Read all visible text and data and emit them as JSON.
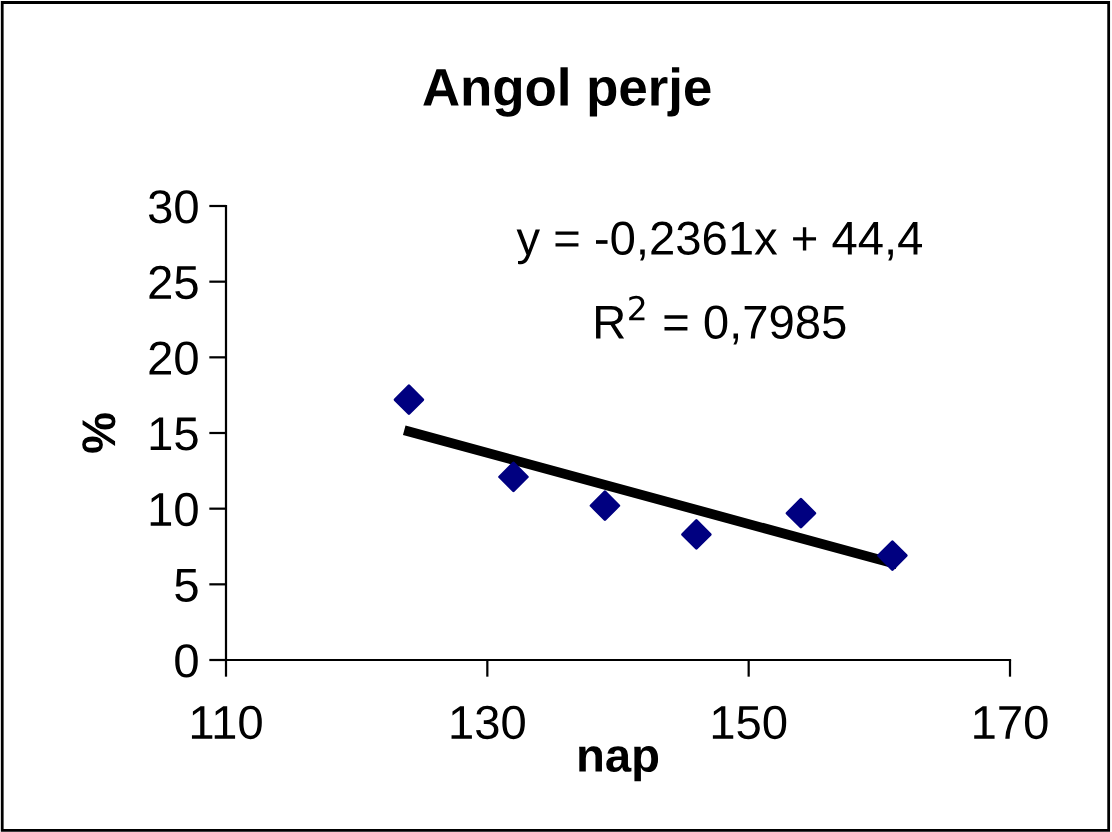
{
  "chart_data": {
    "type": "scatter",
    "title": "Angol perje",
    "xlabel": "nap",
    "ylabel": "%",
    "xlim": [
      110,
      170
    ],
    "xticks": [
      110,
      130,
      150,
      170
    ],
    "ylim": [
      0,
      30
    ],
    "yticks": [
      0,
      5,
      10,
      15,
      20,
      25,
      30
    ],
    "grid": false,
    "legend": false,
    "marker": "diamond",
    "series": [
      {
        "color": "#000080",
        "x": [
          124,
          132,
          139,
          146,
          154,
          161
        ],
        "values": [
          17.2,
          12.1,
          10.2,
          8.3,
          9.7,
          6.9
        ]
      },
      {
        "type": "line",
        "marker": "none",
        "color": "#000000",
        "x": [
          124,
          161
        ],
        "values": [
          15.1,
          6.4
        ]
      }
    ],
    "annotations": [
      "y = -0,2361x + 44,4",
      "R$^{2}$ = 0,7985"
    ]
  }
}
